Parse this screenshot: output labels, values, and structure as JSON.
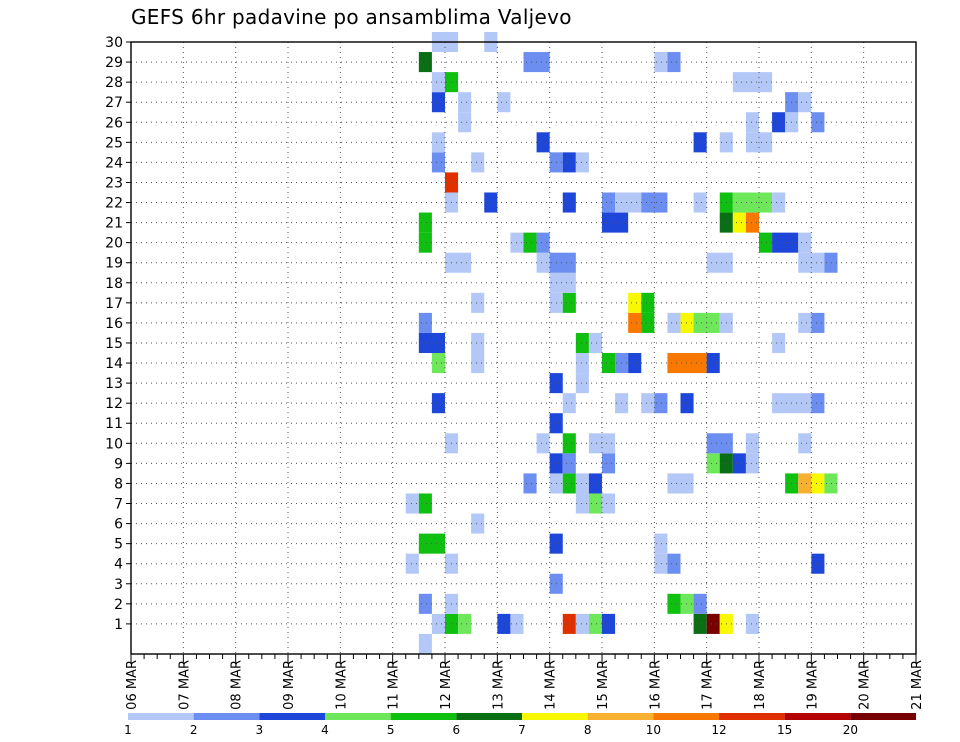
{
  "chart_data": {
    "type": "heatmap",
    "title": "GEFS 6hr padavine po ansamblima Valjevo",
    "x_ticks": [
      "06 MAR",
      "07 MAR",
      "08 MAR",
      "09 MAR",
      "10 MAR",
      "11 MAR",
      "12 MAR",
      "13 MAR",
      "14 MAR",
      "15 MAR",
      "16 MAR",
      "17 MAR",
      "18 MAR",
      "19 MAR",
      "20 MAR",
      "21 MAR"
    ],
    "y_ticks": [
      1,
      2,
      3,
      4,
      5,
      6,
      7,
      8,
      9,
      10,
      11,
      12,
      13,
      14,
      15,
      16,
      17,
      18,
      19,
      20,
      21,
      22,
      23,
      24,
      25,
      26,
      27,
      28,
      29,
      30
    ],
    "x_unit": "6-hour steps",
    "grid": true,
    "color_bins": [
      {
        "label": "1",
        "color": "#b4c8f8"
      },
      {
        "label": "2",
        "color": "#6b8ef0"
      },
      {
        "label": "3",
        "color": "#1e46d8"
      },
      {
        "label": "4",
        "color": "#6ee85a"
      },
      {
        "label": "5",
        "color": "#10c010"
      },
      {
        "label": "6",
        "color": "#0a6e14"
      },
      {
        "label": "7",
        "color": "#f8f800"
      },
      {
        "label": "8",
        "color": "#f8b030"
      },
      {
        "label": "10",
        "color": "#f87800"
      },
      {
        "label": "12",
        "color": "#e03000"
      },
      {
        "label": "15",
        "color": "#b40000"
      },
      {
        "label": "20",
        "color": "#780000"
      }
    ],
    "cells_note": "each cell = [member, start_step, length_in_steps, bin_index]",
    "cells": [
      [
        1,
        23,
        1,
        0
      ],
      [
        1,
        24,
        1,
        4
      ],
      [
        1,
        25,
        1,
        3
      ],
      [
        1,
        28,
        1,
        2
      ],
      [
        1,
        29,
        1,
        0
      ],
      [
        1,
        33,
        1,
        9
      ],
      [
        1,
        34,
        1,
        0
      ],
      [
        1,
        35,
        1,
        3
      ],
      [
        1,
        36,
        1,
        2
      ],
      [
        1,
        43,
        1,
        5
      ],
      [
        1,
        44,
        1,
        11
      ],
      [
        1,
        45,
        1,
        6
      ],
      [
        1,
        47,
        1,
        0
      ],
      [
        2,
        22,
        1,
        1
      ],
      [
        2,
        24,
        1,
        0
      ],
      [
        2,
        41,
        1,
        4
      ],
      [
        2,
        42,
        1,
        3
      ],
      [
        2,
        43,
        1,
        1
      ],
      [
        3,
        32,
        1,
        1
      ],
      [
        4,
        21,
        1,
        0
      ],
      [
        4,
        24,
        1,
        0
      ],
      [
        4,
        40,
        1,
        0
      ],
      [
        4,
        41,
        1,
        1
      ],
      [
        4,
        52,
        1,
        2
      ],
      [
        5,
        22,
        2,
        4
      ],
      [
        5,
        32,
        1,
        2
      ],
      [
        5,
        40,
        1,
        0
      ],
      [
        6,
        26,
        1,
        0
      ],
      [
        7,
        21,
        1,
        0
      ],
      [
        7,
        22,
        1,
        4
      ],
      [
        7,
        34,
        1,
        0
      ],
      [
        7,
        35,
        1,
        3
      ],
      [
        7,
        36,
        1,
        0
      ],
      [
        8,
        30,
        1,
        1
      ],
      [
        8,
        32,
        1,
        0
      ],
      [
        8,
        33,
        1,
        4
      ],
      [
        8,
        34,
        1,
        0
      ],
      [
        8,
        35,
        1,
        2
      ],
      [
        8,
        41,
        2,
        0
      ],
      [
        8,
        50,
        1,
        4
      ],
      [
        8,
        51,
        1,
        7
      ],
      [
        8,
        52,
        1,
        6
      ],
      [
        8,
        53,
        1,
        3
      ],
      [
        9,
        32,
        1,
        2
      ],
      [
        9,
        33,
        1,
        1
      ],
      [
        9,
        36,
        1,
        1
      ],
      [
        9,
        44,
        1,
        3
      ],
      [
        9,
        45,
        1,
        5
      ],
      [
        9,
        46,
        1,
        2
      ],
      [
        9,
        47,
        1,
        0
      ],
      [
        10,
        24,
        1,
        0
      ],
      [
        10,
        31,
        1,
        0
      ],
      [
        10,
        33,
        1,
        4
      ],
      [
        10,
        35,
        2,
        0
      ],
      [
        10,
        44,
        2,
        1
      ],
      [
        10,
        47,
        1,
        0
      ],
      [
        10,
        51,
        1,
        0
      ],
      [
        11,
        32,
        1,
        2
      ],
      [
        12,
        23,
        1,
        2
      ],
      [
        12,
        33,
        1,
        0
      ],
      [
        12,
        37,
        1,
        0
      ],
      [
        12,
        39,
        1,
        0
      ],
      [
        12,
        40,
        1,
        1
      ],
      [
        12,
        42,
        1,
        2
      ],
      [
        12,
        49,
        3,
        0
      ],
      [
        12,
        52,
        1,
        1
      ],
      [
        13,
        32,
        1,
        2
      ],
      [
        13,
        34,
        1,
        0
      ],
      [
        14,
        23,
        1,
        3
      ],
      [
        14,
        26,
        1,
        0
      ],
      [
        14,
        34,
        1,
        0
      ],
      [
        14,
        36,
        1,
        4
      ],
      [
        14,
        37,
        1,
        1
      ],
      [
        14,
        38,
        1,
        2
      ],
      [
        14,
        41,
        3,
        8
      ],
      [
        14,
        44,
        1,
        2
      ],
      [
        15,
        22,
        2,
        2
      ],
      [
        15,
        26,
        1,
        0
      ],
      [
        15,
        34,
        1,
        4
      ],
      [
        15,
        35,
        1,
        0
      ],
      [
        15,
        49,
        1,
        0
      ],
      [
        16,
        22,
        1,
        1
      ],
      [
        16,
        38,
        1,
        8
      ],
      [
        16,
        39,
        1,
        4
      ],
      [
        16,
        41,
        1,
        0
      ],
      [
        16,
        42,
        1,
        6
      ],
      [
        16,
        43,
        2,
        3
      ],
      [
        16,
        45,
        1,
        0
      ],
      [
        16,
        51,
        1,
        0
      ],
      [
        16,
        52,
        1,
        1
      ],
      [
        17,
        26,
        1,
        0
      ],
      [
        17,
        32,
        1,
        0
      ],
      [
        17,
        33,
        1,
        4
      ],
      [
        17,
        38,
        1,
        6
      ],
      [
        17,
        39,
        1,
        4
      ],
      [
        18,
        32,
        2,
        0
      ],
      [
        19,
        24,
        2,
        0
      ],
      [
        19,
        31,
        1,
        0
      ],
      [
        19,
        32,
        2,
        1
      ],
      [
        19,
        44,
        2,
        0
      ],
      [
        19,
        51,
        2,
        0
      ],
      [
        19,
        53,
        1,
        1
      ],
      [
        20,
        22,
        1,
        4
      ],
      [
        20,
        29,
        1,
        0
      ],
      [
        20,
        30,
        1,
        4
      ],
      [
        20,
        31,
        1,
        1
      ],
      [
        20,
        48,
        1,
        4
      ],
      [
        20,
        49,
        2,
        2
      ],
      [
        20,
        51,
        1,
        0
      ],
      [
        21,
        22,
        1,
        4
      ],
      [
        21,
        36,
        2,
        2
      ],
      [
        21,
        45,
        1,
        5
      ],
      [
        21,
        46,
        1,
        6
      ],
      [
        21,
        47,
        1,
        8
      ],
      [
        22,
        24,
        1,
        0
      ],
      [
        22,
        27,
        1,
        2
      ],
      [
        22,
        33,
        1,
        2
      ],
      [
        22,
        36,
        1,
        1
      ],
      [
        22,
        37,
        2,
        0
      ],
      [
        22,
        39,
        2,
        1
      ],
      [
        22,
        43,
        1,
        0
      ],
      [
        22,
        45,
        1,
        4
      ],
      [
        22,
        46,
        3,
        3
      ],
      [
        22,
        49,
        1,
        0
      ],
      [
        23,
        24,
        1,
        9
      ],
      [
        24,
        23,
        1,
        1
      ],
      [
        24,
        26,
        1,
        0
      ],
      [
        24,
        32,
        1,
        1
      ],
      [
        24,
        33,
        1,
        2
      ],
      [
        24,
        34,
        1,
        0
      ],
      [
        25,
        23,
        1,
        0
      ],
      [
        25,
        31,
        1,
        2
      ],
      [
        25,
        43,
        1,
        2
      ],
      [
        25,
        45,
        1,
        0
      ],
      [
        25,
        47,
        2,
        0
      ],
      [
        26,
        25,
        1,
        0
      ],
      [
        26,
        47,
        1,
        0
      ],
      [
        26,
        49,
        1,
        2
      ],
      [
        26,
        50,
        1,
        0
      ],
      [
        26,
        52,
        1,
        1
      ],
      [
        27,
        23,
        1,
        2
      ],
      [
        27,
        25,
        1,
        0
      ],
      [
        27,
        28,
        1,
        0
      ],
      [
        27,
        50,
        1,
        1
      ],
      [
        27,
        51,
        1,
        0
      ],
      [
        28,
        23,
        1,
        0
      ],
      [
        28,
        24,
        1,
        4
      ],
      [
        28,
        46,
        3,
        0
      ],
      [
        29,
        22,
        1,
        5
      ],
      [
        29,
        30,
        2,
        1
      ],
      [
        29,
        40,
        1,
        0
      ],
      [
        29,
        41,
        1,
        1
      ],
      [
        30,
        23,
        2,
        0
      ],
      [
        30,
        27,
        1,
        0
      ],
      [
        0,
        22,
        1,
        0
      ]
    ]
  }
}
